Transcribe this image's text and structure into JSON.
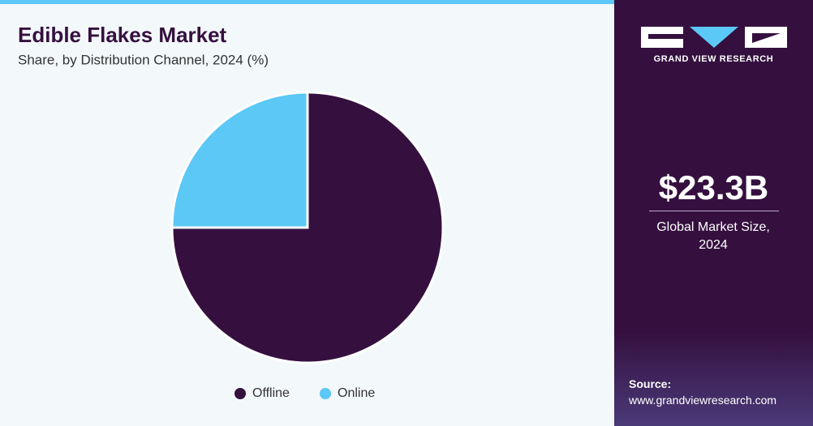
{
  "chart_data": {
    "type": "pie",
    "title": "Edible Flakes Market",
    "subtitle": "Share, by Distribution Channel, 2024 (%)",
    "categories": [
      "Offline",
      "Online"
    ],
    "values": [
      75,
      25
    ],
    "colors": [
      "#35103f",
      "#5bc8f5"
    ]
  },
  "sidebar": {
    "brand": "GRAND VIEW RESEARCH",
    "market_size": "$23.3B",
    "market_size_label": "Global Market Size, 2024",
    "source_label": "Source:",
    "source_url": "www.grandviewresearch.com"
  }
}
